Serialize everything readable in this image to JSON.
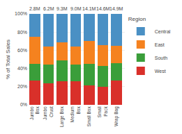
{
  "chart_data": {
    "type": "bar",
    "stacked": true,
    "categories": [
      "Jumbo\nBox",
      "Jumbo\nCrust",
      "Large Box",
      "Medium\nBox",
      "Small Box",
      "Small\nPack",
      "Wrap Bag"
    ],
    "series": [
      {
        "name": "West",
        "color": "#d9302a",
        "values": [
          0.27,
          0.24,
          0.26,
          0.26,
          0.21,
          0.2,
          0.27
        ]
      },
      {
        "name": "South",
        "color": "#3a9e3a",
        "values": [
          0.18,
          0.2,
          0.23,
          0.18,
          0.24,
          0.23,
          0.19
        ]
      },
      {
        "name": "East",
        "color": "#f5821f",
        "values": [
          0.3,
          0.2,
          0.2,
          0.2,
          0.25,
          0.23,
          0.19
        ]
      },
      {
        "name": "Central",
        "color": "#4a90c4",
        "values": [
          0.25,
          0.36,
          0.31,
          0.36,
          0.3,
          0.34,
          0.35
        ]
      }
    ],
    "ylabel": "% of Total Sales",
    "ylim": [
      0,
      1.0
    ],
    "yticks": [
      {
        "value": 0,
        "label": "0%"
      },
      {
        "value": 0.2,
        "label": "20%"
      },
      {
        "value": 0.4,
        "label": "40%"
      },
      {
        "value": 0.6,
        "label": "60%"
      },
      {
        "value": 0.8,
        "label": "80%"
      },
      {
        "value": 1.0,
        "label": "100%"
      }
    ],
    "grid": true,
    "legend": "upper right",
    "legend_title": "Region",
    "annotations": [
      {
        "x": "Jumbo\nBox",
        "text": "2.8M"
      },
      {
        "x": "Jumbo\nCrust",
        "text": "6.2M"
      },
      {
        "x": "Large Box",
        "text": "9.3M"
      },
      {
        "x": "Medium\nBox",
        "text": "9.0M"
      },
      {
        "x": "Small Box",
        "text": "14.1M"
      },
      {
        "x": "Small\nPack",
        "text": "14.6M"
      },
      {
        "x": "Wrap Bag",
        "text": "14.9M"
      }
    ]
  }
}
